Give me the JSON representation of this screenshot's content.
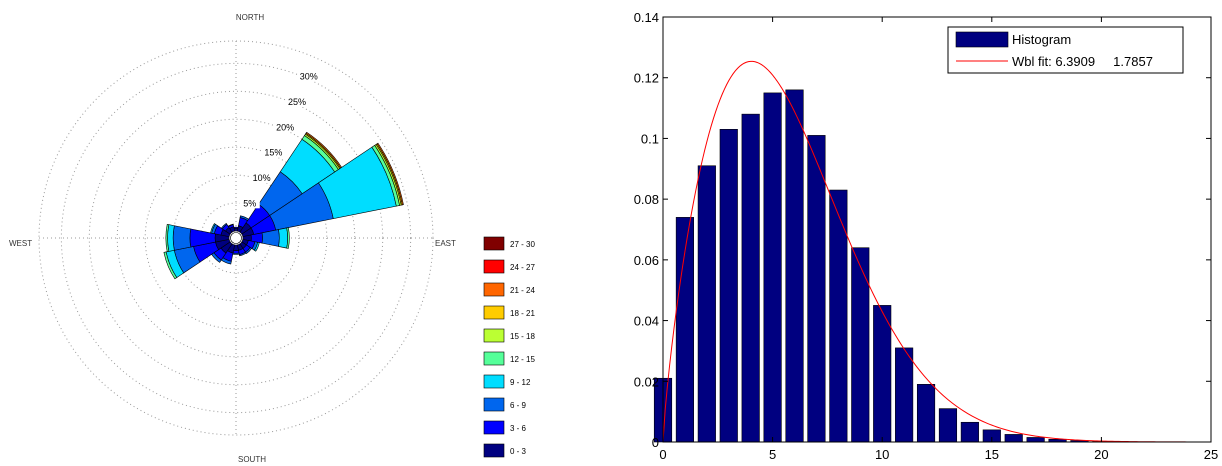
{
  "chart_data": [
    {
      "type": "polar-bar",
      "title": "",
      "directions": {
        "north": "NORTH",
        "south": "SOUTH",
        "east": "EAST",
        "west": "WEST"
      },
      "ring_labels": [
        "5%",
        "10%",
        "15%",
        "20%",
        "25%",
        "30%"
      ],
      "ring_values": [
        5,
        10,
        15,
        20,
        25,
        30
      ],
      "max_percent": 34,
      "sector_width_deg": 22.5,
      "bins": [
        {
          "label": "0 - 3",
          "color": "#000080"
        },
        {
          "label": "3 - 6",
          "color": "#0000ff"
        },
        {
          "label": "6 - 9",
          "color": "#0066ee"
        },
        {
          "label": "9 - 12",
          "color": "#00ddff"
        },
        {
          "label": "12 - 15",
          "color": "#55ff99"
        },
        {
          "label": "15 - 18",
          "color": "#bbff33"
        },
        {
          "label": "18 - 21",
          "color": "#ffcc00"
        },
        {
          "label": "21 - 24",
          "color": "#ff6600"
        },
        {
          "label": "24 - 27",
          "color": "#ff0000"
        },
        {
          "label": "27 - 30",
          "color": "#800000"
        }
      ],
      "sectors": [
        {
          "dir_deg": 0,
          "values": [
            0.5,
            0.2,
            0,
            0,
            0,
            0,
            0,
            0,
            0,
            0
          ]
        },
        {
          "dir_deg": 22.5,
          "values": [
            1,
            1.5,
            0.3,
            0,
            0,
            0,
            0,
            0,
            0,
            0
          ]
        },
        {
          "dir_deg": 45,
          "values": [
            2,
            4,
            7,
            7,
            0.8,
            0.3,
            0.2,
            0.2,
            0,
            0
          ]
        },
        {
          "dir_deg": 67.5,
          "values": [
            2,
            4,
            10.5,
            11.5,
            0.6,
            0.3,
            0.2,
            0.2,
            0,
            0
          ]
        },
        {
          "dir_deg": 90,
          "values": [
            1.5,
            2,
            3,
            1.5,
            0.3,
            0,
            0,
            0,
            0,
            0
          ]
        },
        {
          "dir_deg": 112.5,
          "values": [
            1,
            1.2,
            0.5,
            0.3,
            0,
            0,
            0,
            0,
            0,
            0
          ]
        },
        {
          "dir_deg": 135,
          "values": [
            1,
            0.8,
            0.3,
            0,
            0,
            0,
            0,
            0,
            0,
            0
          ]
        },
        {
          "dir_deg": 157.5,
          "values": [
            1,
            0.8,
            0.2,
            0,
            0,
            0,
            0,
            0,
            0,
            0
          ]
        },
        {
          "dir_deg": 180,
          "values": [
            1,
            0.5,
            0.2,
            0,
            0,
            0,
            0,
            0,
            0,
            0
          ]
        },
        {
          "dir_deg": 202.5,
          "values": [
            1.5,
            1.5,
            0.5,
            0,
            0,
            0,
            0,
            0,
            0,
            0
          ]
        },
        {
          "dir_deg": 225,
          "values": [
            2,
            1.5,
            0.5,
            0,
            0,
            0,
            0,
            0,
            0,
            0
          ]
        },
        {
          "dir_deg": 247.5,
          "values": [
            2.5,
            4,
            3.5,
            1.5,
            0.4,
            0,
            0,
            0,
            0,
            0
          ]
        },
        {
          "dir_deg": 270,
          "values": [
            2.5,
            4.5,
            3,
            1,
            0.3,
            0,
            0,
            0,
            0,
            0
          ]
        },
        {
          "dir_deg": 292.5,
          "values": [
            1.5,
            1.2,
            0.5,
            0.2,
            0,
            0,
            0,
            0,
            0,
            0
          ]
        },
        {
          "dir_deg": 315,
          "values": [
            1,
            0.7,
            0.2,
            0,
            0,
            0,
            0,
            0,
            0,
            0
          ]
        },
        {
          "dir_deg": 337.5,
          "values": [
            0.8,
            0.4,
            0.1,
            0,
            0,
            0,
            0,
            0,
            0,
            0
          ]
        }
      ]
    },
    {
      "type": "bar",
      "title": "",
      "xlabel": "",
      "ylabel": "",
      "xlim": [
        0,
        25
      ],
      "ylim": [
        0,
        0.14
      ],
      "xticks": [
        0,
        5,
        10,
        15,
        20,
        25
      ],
      "yticks": [
        0,
        0.02,
        0.04,
        0.06,
        0.08,
        0.1,
        0.12,
        0.14
      ],
      "legend_position": "top-right",
      "series": [
        {
          "name": "Histogram",
          "type": "bar",
          "color": "#000080",
          "x": [
            0,
            1,
            2,
            3,
            4,
            5,
            6,
            7,
            8,
            9,
            10,
            11,
            12,
            13,
            14,
            15,
            16,
            17,
            18,
            19,
            20
          ],
          "values": [
            0.021,
            0.074,
            0.091,
            0.103,
            0.108,
            0.115,
            0.116,
            0.101,
            0.083,
            0.064,
            0.045,
            0.031,
            0.019,
            0.011,
            0.0065,
            0.004,
            0.0025,
            0.0015,
            0.0009,
            0.0005,
            0.0002
          ]
        },
        {
          "name": "Wbl fit: 6.3909     1.7857",
          "type": "line",
          "color": "#ff0000",
          "weibull_params": {
            "scale": 6.3909,
            "shape": 1.7857
          }
        }
      ]
    }
  ]
}
